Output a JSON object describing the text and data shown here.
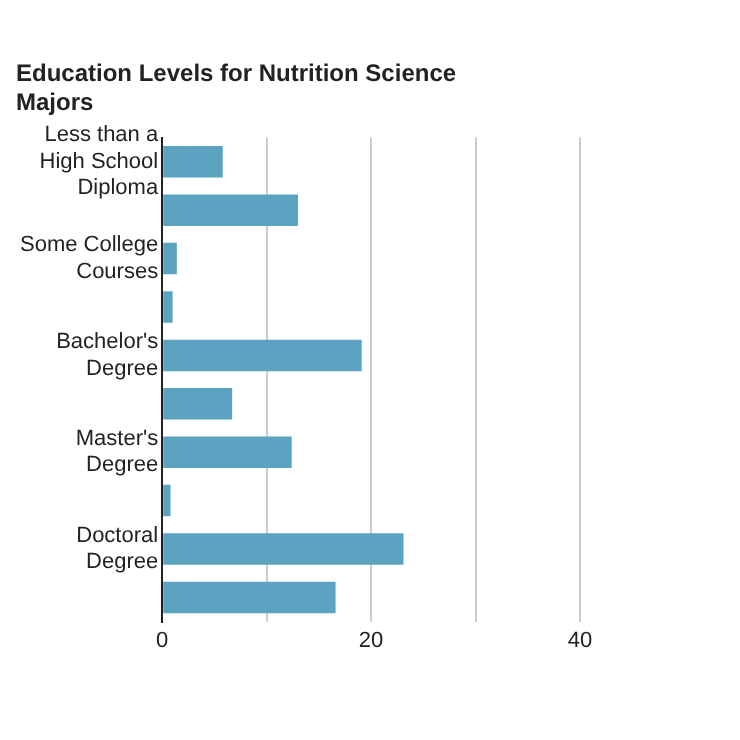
{
  "chart_data": {
    "type": "bar",
    "orientation": "horizontal",
    "title": "Education Levels for Nutrition Science Majors",
    "categories": [
      "Less than a High School Diploma",
      null,
      "Some College Courses",
      null,
      "Bachelor's Degree",
      null,
      "Master's Degree",
      null,
      "Doctoral Degree",
      null
    ],
    "values": [
      5.8,
      13.0,
      1.4,
      1.0,
      19.1,
      6.7,
      12.4,
      0.8,
      23.1,
      16.6
    ],
    "color": "#5ba3c0",
    "xlim": [
      0,
      40
    ],
    "xticks": [
      0,
      {
        "value": 10,
        "label": null
      },
      20,
      {
        "value": 30,
        "label": null
      },
      40
    ],
    "grid": "x",
    "legend": false
  }
}
